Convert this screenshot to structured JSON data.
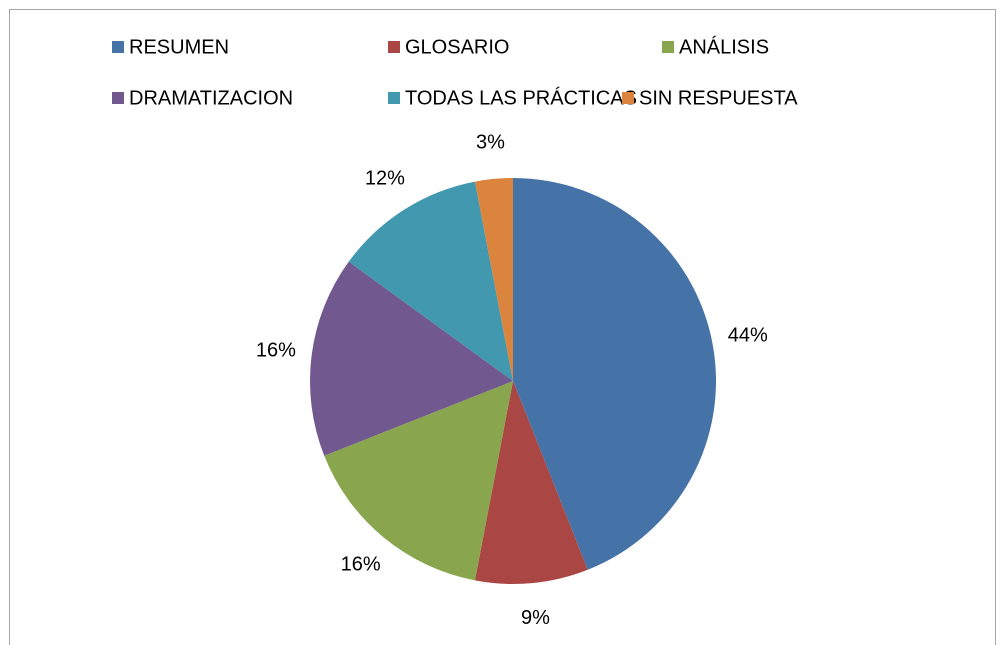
{
  "chart_data": {
    "type": "pie",
    "categories": [
      "RESUMEN",
      "GLOSARIO",
      "ANÁLISIS",
      "DRAMATIZACION",
      "TODAS LAS PRÁCTICAS",
      "SIN RESPUESTA"
    ],
    "values": [
      44,
      9,
      16,
      16,
      12,
      3
    ],
    "value_labels": [
      "44%",
      "9%",
      "16%",
      "16%",
      "12%",
      "3%"
    ],
    "colors": [
      "#4572a7",
      "#aa4643",
      "#89a54e",
      "#71588f",
      "#4198af",
      "#db843d"
    ],
    "legend": "top"
  }
}
